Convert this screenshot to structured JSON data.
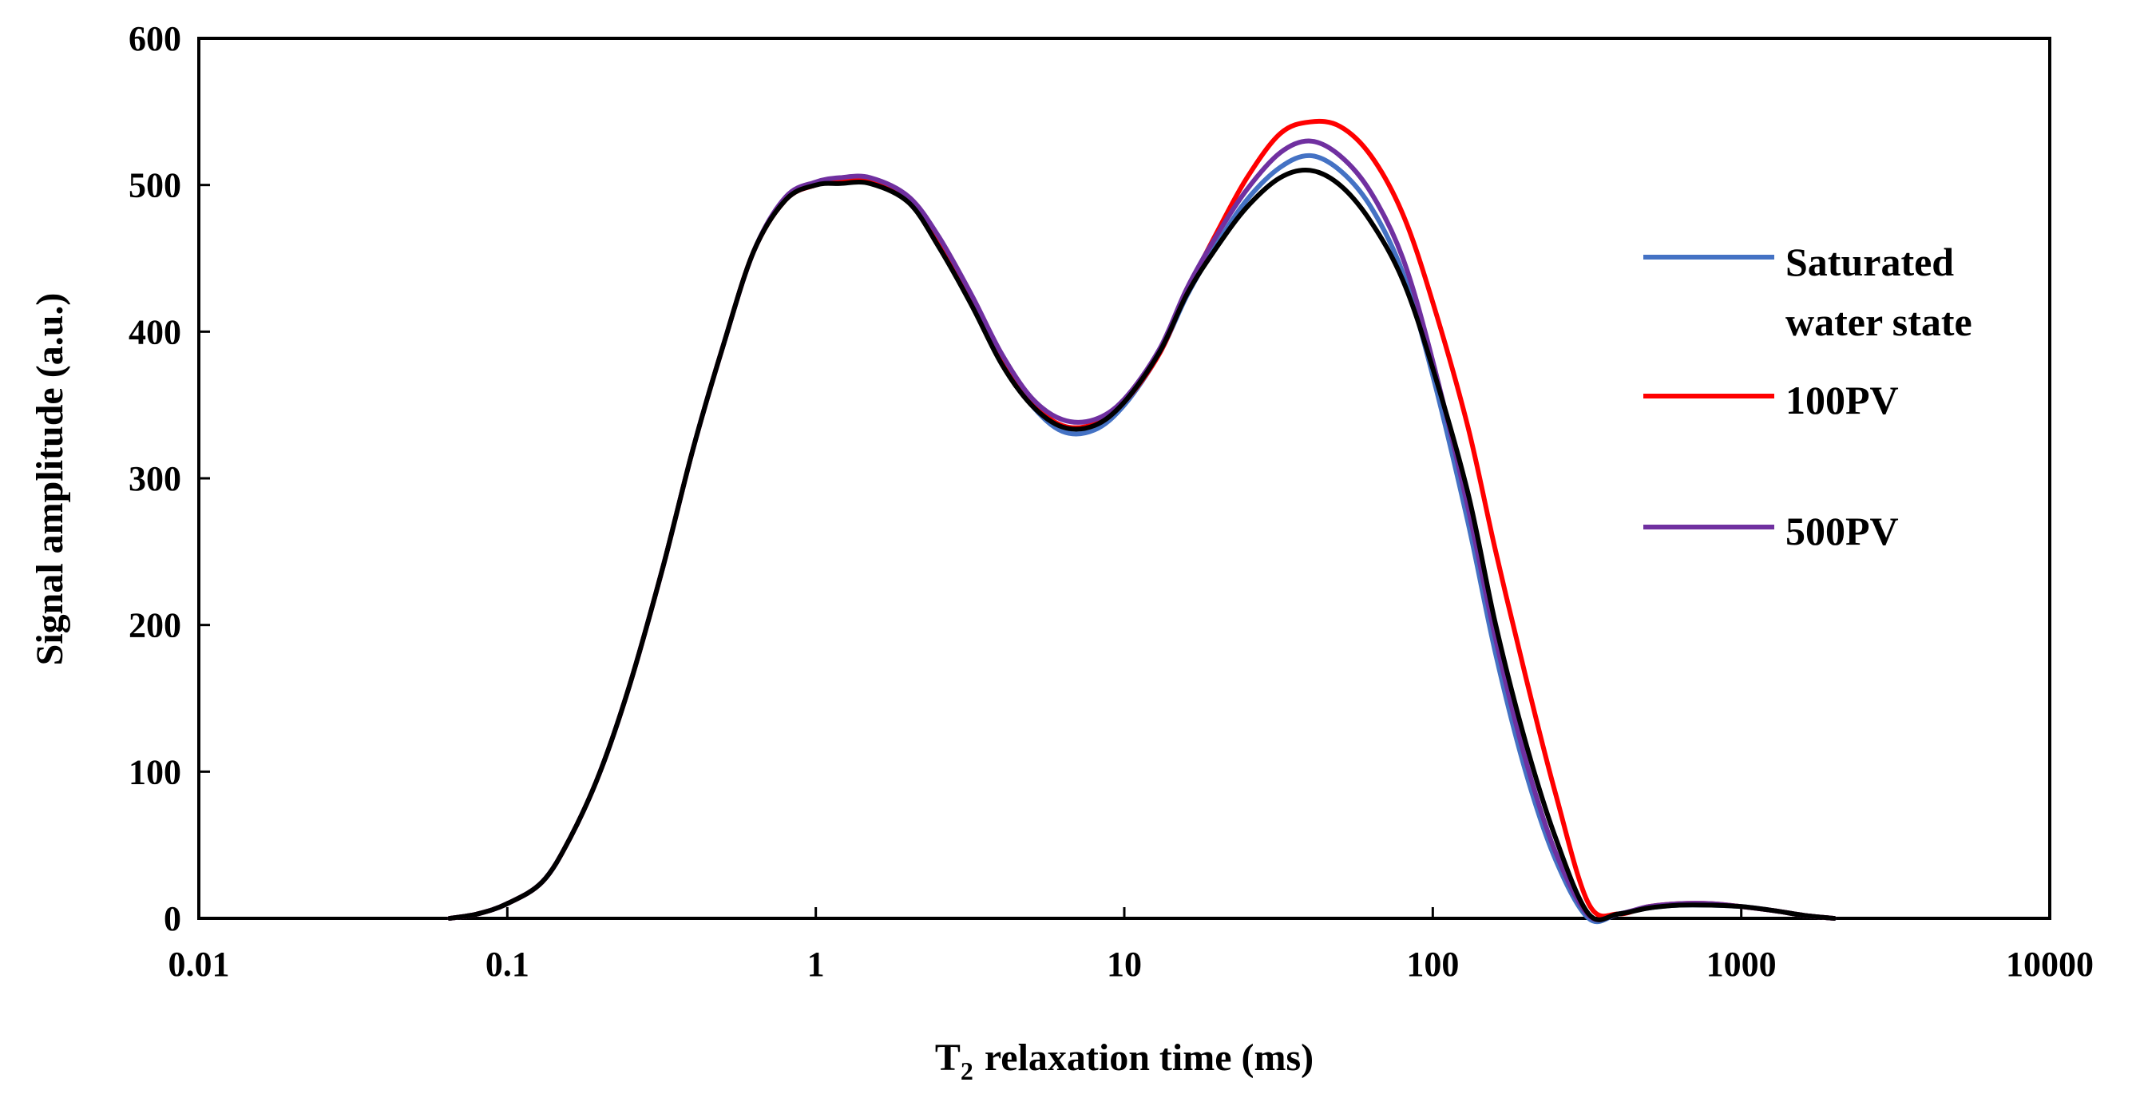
{
  "chart_data": {
    "type": "line",
    "title": "",
    "xlabel": "relaxation time (ms)",
    "xlabel_prefix": "T",
    "xlabel_subscript": "2",
    "ylabel": "Signal amplitude (a.u.)",
    "xscale": "log",
    "xlim": [
      0.01,
      10000
    ],
    "ylim": [
      0,
      600
    ],
    "xticks": [
      0.01,
      0.1,
      1,
      10,
      100,
      1000,
      10000
    ],
    "xtick_labels": [
      "0.01",
      "0.1",
      "1",
      "10",
      "100",
      "1000",
      "10000"
    ],
    "yticks": [
      0,
      100,
      200,
      300,
      400,
      500,
      600
    ],
    "ytick_labels": [
      "0",
      "100",
      "200",
      "300",
      "400",
      "500",
      "600"
    ],
    "grid": false,
    "legend_position": "right",
    "series": [
      {
        "name": "Saturated water state",
        "legend_lines": [
          "Saturated",
          "water state"
        ],
        "color": "#4472C4",
        "x": [
          0.065,
          0.08,
          0.1,
          0.13,
          0.16,
          0.2,
          0.25,
          0.32,
          0.4,
          0.5,
          0.63,
          0.8,
          1.0,
          1.2,
          1.5,
          2.0,
          2.5,
          3.2,
          4.0,
          5.0,
          6.3,
          8.0,
          10,
          13,
          16,
          20,
          25,
          32,
          40,
          50,
          63,
          80,
          100,
          130,
          160,
          200,
          250,
          320,
          400,
          500,
          630,
          800,
          1000,
          1300,
          1600,
          2000
        ],
        "y": [
          0,
          3,
          10,
          25,
          55,
          100,
          160,
          240,
          320,
          390,
          455,
          490,
          500,
          502,
          502,
          490,
          460,
          420,
          380,
          350,
          332,
          333,
          350,
          385,
          425,
          460,
          490,
          512,
          520,
          510,
          485,
          440,
          370,
          270,
          180,
          100,
          40,
          0,
          3,
          7,
          9,
          9,
          8,
          5,
          2,
          0
        ]
      },
      {
        "name": "100PV",
        "legend_lines": [
          "100PV"
        ],
        "color": "#FF0000",
        "x": [
          0.065,
          0.08,
          0.1,
          0.13,
          0.16,
          0.2,
          0.25,
          0.32,
          0.4,
          0.5,
          0.63,
          0.8,
          1.0,
          1.2,
          1.5,
          2.0,
          2.5,
          3.2,
          4.0,
          5.0,
          6.3,
          8.0,
          10,
          13,
          16,
          20,
          25,
          32,
          40,
          50,
          63,
          80,
          100,
          130,
          160,
          200,
          250,
          320,
          400,
          500,
          630,
          800,
          1000,
          1300,
          1600,
          2000
        ],
        "y": [
          0,
          3,
          10,
          25,
          55,
          100,
          160,
          240,
          320,
          390,
          455,
          490,
          500,
          503,
          503,
          490,
          462,
          422,
          382,
          352,
          336,
          337,
          352,
          385,
          428,
          468,
          505,
          535,
          543,
          540,
          520,
          480,
          420,
          335,
          250,
          165,
          85,
          10,
          3,
          8,
          10,
          10,
          8,
          5,
          2,
          0
        ]
      },
      {
        "name": "500PV",
        "legend_lines": [
          "500PV"
        ],
        "color": "#7030A0",
        "x": [
          0.065,
          0.08,
          0.1,
          0.13,
          0.16,
          0.2,
          0.25,
          0.32,
          0.4,
          0.5,
          0.63,
          0.8,
          1.0,
          1.2,
          1.5,
          2.0,
          2.5,
          3.2,
          4.0,
          5.0,
          6.3,
          8.0,
          10,
          13,
          16,
          20,
          25,
          32,
          40,
          50,
          63,
          80,
          100,
          130,
          160,
          200,
          250,
          320,
          400,
          500,
          630,
          800,
          1000,
          1300,
          1600,
          2000
        ],
        "y": [
          0,
          3,
          10,
          25,
          55,
          100,
          160,
          240,
          320,
          390,
          455,
          492,
          502,
          505,
          505,
          492,
          465,
          425,
          385,
          355,
          340,
          340,
          354,
          388,
          430,
          466,
          497,
          522,
          530,
          520,
          495,
          450,
          380,
          280,
          190,
          108,
          45,
          2,
          3,
          8,
          10,
          10,
          8,
          5,
          2,
          0
        ]
      },
      {
        "name": "",
        "legend_lines": [],
        "color": "#000000",
        "x": [
          0.065,
          0.08,
          0.1,
          0.13,
          0.16,
          0.2,
          0.25,
          0.32,
          0.4,
          0.5,
          0.63,
          0.8,
          1.0,
          1.2,
          1.5,
          2.0,
          2.5,
          3.2,
          4.0,
          5.0,
          6.3,
          8.0,
          10,
          13,
          16,
          20,
          25,
          32,
          40,
          50,
          63,
          80,
          100,
          130,
          160,
          200,
          250,
          320,
          400,
          500,
          630,
          800,
          1000,
          1300,
          1600,
          2000
        ],
        "y": [
          0,
          3,
          10,
          25,
          55,
          100,
          160,
          240,
          320,
          390,
          455,
          490,
          500,
          501,
          501,
          488,
          458,
          418,
          378,
          350,
          335,
          336,
          352,
          386,
          426,
          458,
          485,
          505,
          510,
          500,
          475,
          435,
          375,
          290,
          200,
          120,
          55,
          3,
          3,
          7,
          9,
          9,
          8,
          5,
          2,
          0
        ]
      }
    ]
  }
}
